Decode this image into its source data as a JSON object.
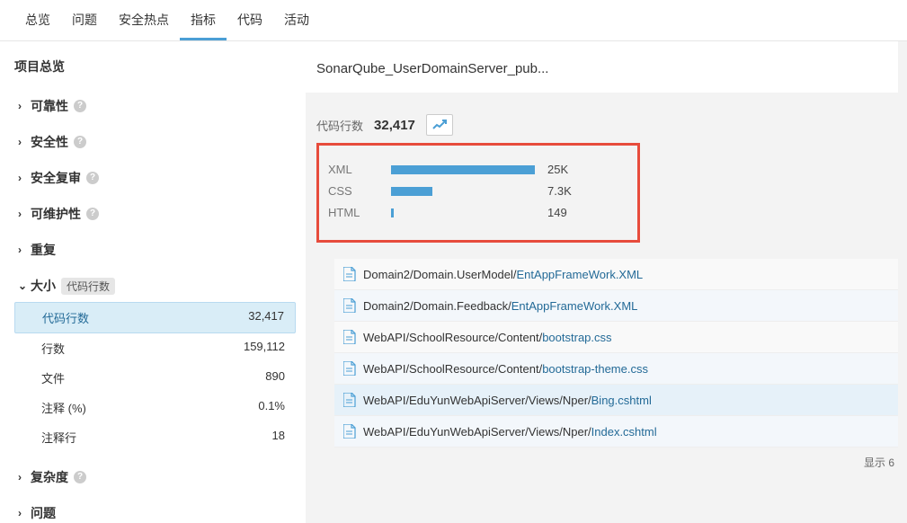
{
  "tabs": [
    "总览",
    "问题",
    "安全热点",
    "指标",
    "代码",
    "活动"
  ],
  "active_tab_index": 3,
  "sidebar_title": "项目总览",
  "categories": [
    {
      "label": "可靠性",
      "help": true,
      "expanded": false
    },
    {
      "label": "安全性",
      "help": true,
      "expanded": false
    },
    {
      "label": "安全复审",
      "help": true,
      "expanded": false
    },
    {
      "label": "可维护性",
      "help": true,
      "expanded": false
    },
    {
      "label": "重复",
      "expanded": false
    },
    {
      "label": "大小",
      "badge": "代码行数",
      "expanded": true,
      "items": [
        {
          "label": "代码行数",
          "value": "32,417",
          "selected": true
        },
        {
          "label": "行数",
          "value": "159,112"
        },
        {
          "label": "文件",
          "value": "890"
        },
        {
          "label": "注释 (%)",
          "value": "0.1%"
        },
        {
          "label": "注释行",
          "value": "18"
        }
      ]
    },
    {
      "label": "复杂度",
      "help": true,
      "expanded": false
    },
    {
      "label": "问题",
      "expanded": false
    }
  ],
  "breadcrumb": "SonarQube_UserDomainServer_pub...",
  "metric_label": "代码行数",
  "metric_value": "32,417",
  "languages": {
    "box_border_color": "#e74c3c",
    "bar_color": "#4b9fd5",
    "rows": [
      {
        "name": "XML",
        "value": "25K",
        "pct": 100
      },
      {
        "name": "CSS",
        "value": "7.3K",
        "pct": 29
      },
      {
        "name": "HTML",
        "value": "149",
        "pct": 2
      }
    ]
  },
  "files": [
    {
      "path": "Domain2/Domain.UserModel/",
      "name": "EntAppFrameWork.XML",
      "alt": false
    },
    {
      "path": "Domain2/Domain.Feedback/",
      "name": "EntAppFrameWork.XML",
      "alt": true
    },
    {
      "path": "WebAPI/SchoolResource/Content/",
      "name": "bootstrap.css",
      "alt": false
    },
    {
      "path": "WebAPI/SchoolResource/Content/",
      "name": "bootstrap-theme.css",
      "alt": true
    },
    {
      "path": "WebAPI/EduYunWebApiServer/Views/Nper/",
      "name": "Bing.cshtml",
      "alt": false,
      "hl": true
    },
    {
      "path": "WebAPI/EduYunWebApiServer/Views/Nper/",
      "name": "Index.cshtml",
      "alt": true
    }
  ],
  "footer": "显示 6",
  "icon_color": "#4b9fd5"
}
